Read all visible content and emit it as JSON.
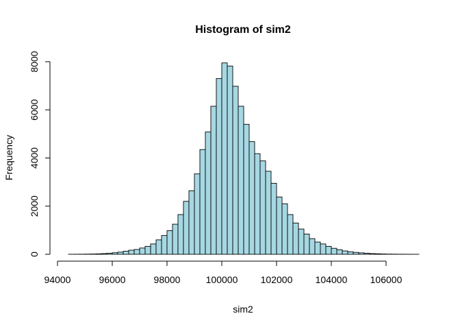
{
  "chart_data": {
    "type": "bar",
    "title": "Histogram of sim2",
    "xlabel": "sim2",
    "ylabel": "Frequency",
    "bar_color": "#a6d8e3",
    "xlim": [
      94000,
      107000
    ],
    "ylim": [
      0,
      8000
    ],
    "x_ticks": [
      94000,
      96000,
      98000,
      100000,
      102000,
      104000,
      106000
    ],
    "y_ticks": [
      0,
      2000,
      4000,
      6000,
      8000
    ],
    "bin_width": 200,
    "bin_start": 94400,
    "values": [
      2,
      3,
      5,
      8,
      12,
      18,
      30,
      45,
      65,
      90,
      130,
      170,
      200,
      260,
      330,
      430,
      600,
      780,
      980,
      1250,
      1650,
      2200,
      2640,
      3340,
      4350,
      5080,
      6150,
      7300,
      7950,
      7820,
      6980,
      6150,
      5400,
      4680,
      4180,
      3880,
      3450,
      2950,
      2380,
      2100,
      1650,
      1300,
      1050,
      840,
      650,
      510,
      430,
      330,
      250,
      190,
      140,
      105,
      80,
      60,
      45,
      30,
      22,
      14,
      9,
      6,
      4,
      3,
      2,
      1
    ]
  }
}
